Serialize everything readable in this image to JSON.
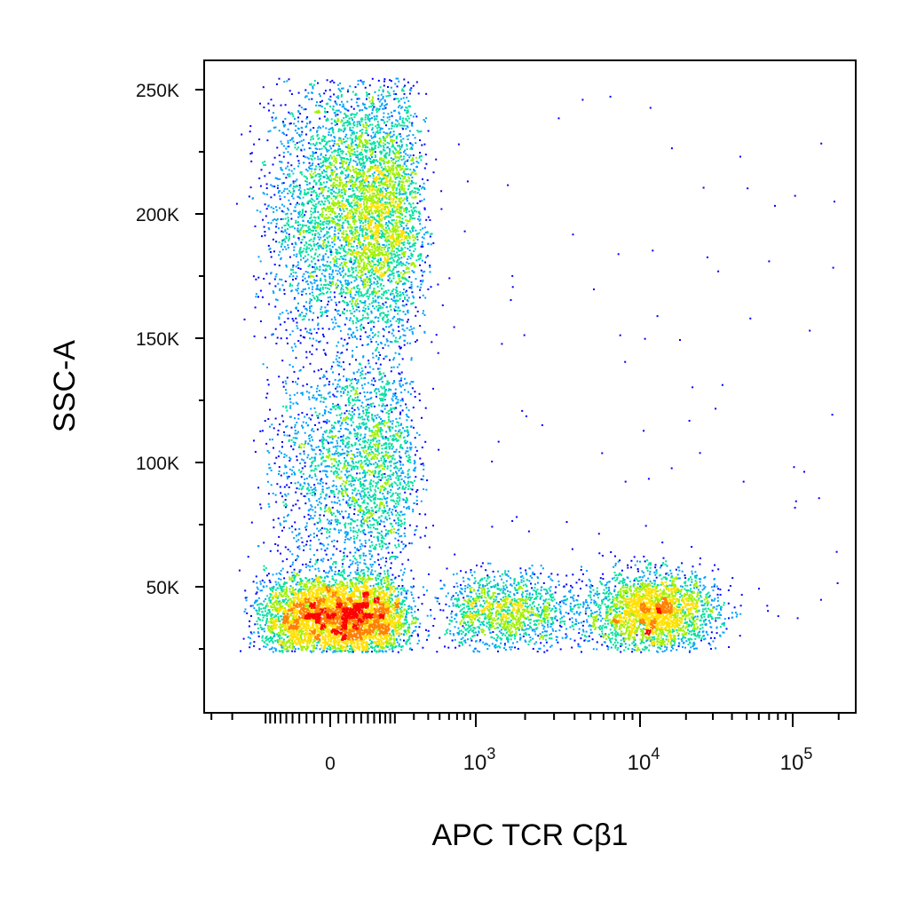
{
  "chart_data": {
    "type": "scatter",
    "subtype": "flow-cytometry-density-dot-plot",
    "title": "",
    "xlabel": "APC TCR Cβ1",
    "ylabel": "SSC-A",
    "x_scale": "biexponential",
    "x_ticks": [
      {
        "value": 0,
        "base": "0",
        "exp": ""
      },
      {
        "value": 1000,
        "base": "10",
        "exp": "3"
      },
      {
        "value": 10000,
        "base": "10",
        "exp": "4"
      },
      {
        "value": 100000,
        "base": "10",
        "exp": "5"
      }
    ],
    "y_ticks": [
      {
        "value": 50000,
        "label": "50K"
      },
      {
        "value": 100000,
        "label": "100K"
      },
      {
        "value": 150000,
        "label": "150K"
      },
      {
        "value": 200000,
        "label": "200K"
      },
      {
        "value": 250000,
        "label": "250K"
      }
    ],
    "xlim": [
      -200,
      200000
    ],
    "ylim": [
      0,
      262144
    ],
    "grid": false,
    "legend": "none",
    "density_colors": [
      "#0000ff",
      "#00a0ff",
      "#00e0a0",
      "#a0f000",
      "#ffe000",
      "#ff8000",
      "#ff0000"
    ],
    "populations": [
      {
        "x_center": 80,
        "x_spread": 120,
        "y_center": 200000,
        "y_spread": 28000,
        "peak_density": "high",
        "ssc_range": [
          145000,
          255000
        ]
      },
      {
        "x_center": 70,
        "x_spread": 110,
        "y_center": 100000,
        "y_spread": 25000,
        "peak_density": "medium",
        "ssc_range": [
          60000,
          145000
        ]
      },
      {
        "x_center": 20,
        "x_spread": 110,
        "y_center": 38000,
        "y_spread": 9000,
        "peak_density": "high",
        "ssc_range": [
          24000,
          70000
        ]
      },
      {
        "x_center": 1500,
        "x_spread": 2500,
        "y_center": 40000,
        "y_spread": 8000,
        "peak_density": "low",
        "ssc_range": [
          24000,
          60000
        ]
      },
      {
        "x_center": 12000,
        "x_spread": 6000,
        "y_center": 40000,
        "y_spread": 8000,
        "peak_density": "medium",
        "ssc_range": [
          24000,
          70000
        ]
      }
    ]
  }
}
